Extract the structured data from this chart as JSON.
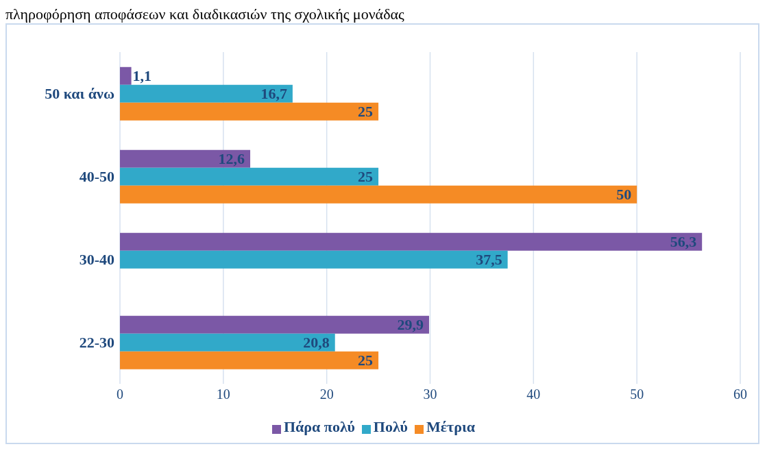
{
  "chart_data": {
    "type": "bar",
    "orientation": "horizontal",
    "title": "πληροφόρηση αποφάσεων και διαδικασιών της σχολικής μονάδας",
    "categories": [
      "50 και άνω",
      "40-50",
      "30-40",
      "22-30"
    ],
    "series": [
      {
        "name": "Πάρα πολύ",
        "color": "#7b58a6",
        "values": [
          1.1,
          12.6,
          56.3,
          29.9
        ],
        "value_labels": [
          "1,1",
          "12,6",
          "56,3",
          "29,9"
        ]
      },
      {
        "name": "Πολύ",
        "color": "#31a9c9",
        "values": [
          16.7,
          25,
          37.5,
          20.8
        ],
        "value_labels": [
          "16,7",
          "25",
          "37,5",
          "20,8"
        ]
      },
      {
        "name": "Μέτρια",
        "color": "#f58b25",
        "values": [
          25,
          50,
          null,
          25
        ],
        "value_labels": [
          "25",
          "50",
          null,
          "25"
        ]
      }
    ],
    "xlim": [
      0,
      60
    ],
    "xticks": [
      0,
      10,
      20,
      30,
      40,
      50,
      60
    ],
    "grid": "x",
    "legend": "bottom"
  }
}
